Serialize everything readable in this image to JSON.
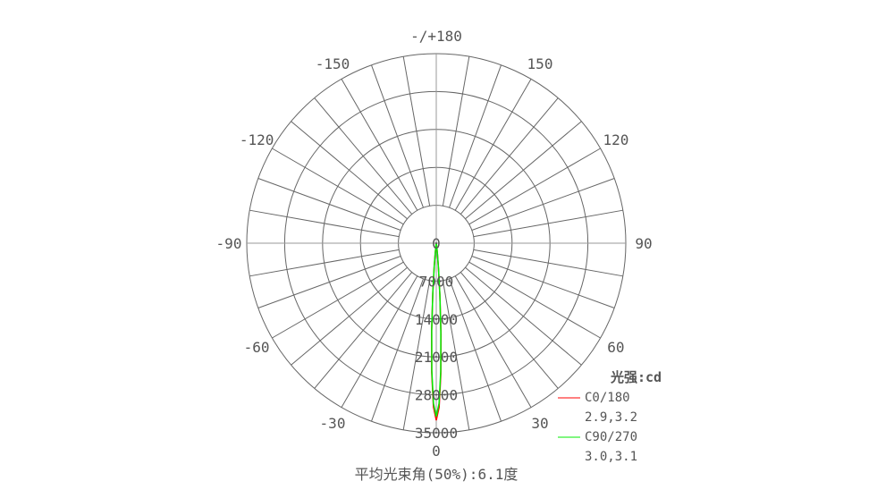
{
  "chart_data": {
    "type": "polar-line",
    "unit_label": "光强:cd",
    "radial_ticks": [
      0,
      7000,
      14000,
      21000,
      28000,
      35000
    ],
    "radial_range": [
      0,
      35000
    ],
    "angle_labels": [
      {
        "angle": 0,
        "text": "0"
      },
      {
        "angle": 30,
        "text": "30"
      },
      {
        "angle": 60,
        "text": "60"
      },
      {
        "angle": 90,
        "text": "90"
      },
      {
        "angle": 120,
        "text": "120"
      },
      {
        "angle": 150,
        "text": "150"
      },
      {
        "angle": 180,
        "text": "-/+180"
      },
      {
        "angle": -150,
        "text": "-150"
      },
      {
        "angle": -120,
        "text": "-120"
      },
      {
        "angle": -90,
        "text": "-90"
      },
      {
        "angle": -60,
        "text": "-60"
      },
      {
        "angle": -30,
        "text": "-30"
      }
    ],
    "grid": true,
    "legend_position": "bottom-right",
    "series": [
      {
        "name": "C0/180",
        "beam_angles": "2.9,3.2",
        "color": "#ff0000",
        "angles": [
          -9,
          -8,
          -7,
          -6,
          -5,
          -4,
          -3,
          -2,
          -1,
          0,
          1,
          2,
          3,
          4,
          5,
          6,
          7,
          8,
          9
        ],
        "values": [
          0,
          150,
          550,
          1700,
          4300,
          8900,
          16300,
          23900,
          30200,
          32700,
          30300,
          24200,
          16800,
          9500,
          4800,
          2000,
          700,
          200,
          0
        ]
      },
      {
        "name": "C90/270",
        "beam_angles": "3.0,3.1",
        "color": "#00ee00",
        "angles": [
          -9,
          -8,
          -7,
          -6,
          -5,
          -4,
          -3,
          -2,
          -1,
          0,
          1,
          2,
          3,
          4,
          5,
          6,
          7,
          8,
          9
        ],
        "values": [
          0,
          200,
          700,
          1950,
          4600,
          9300,
          16000,
          23500,
          29600,
          32000,
          29600,
          23600,
          16200,
          9500,
          4700,
          2000,
          750,
          200,
          0
        ]
      }
    ],
    "footer": "平均光束角(50%):6.1度"
  }
}
